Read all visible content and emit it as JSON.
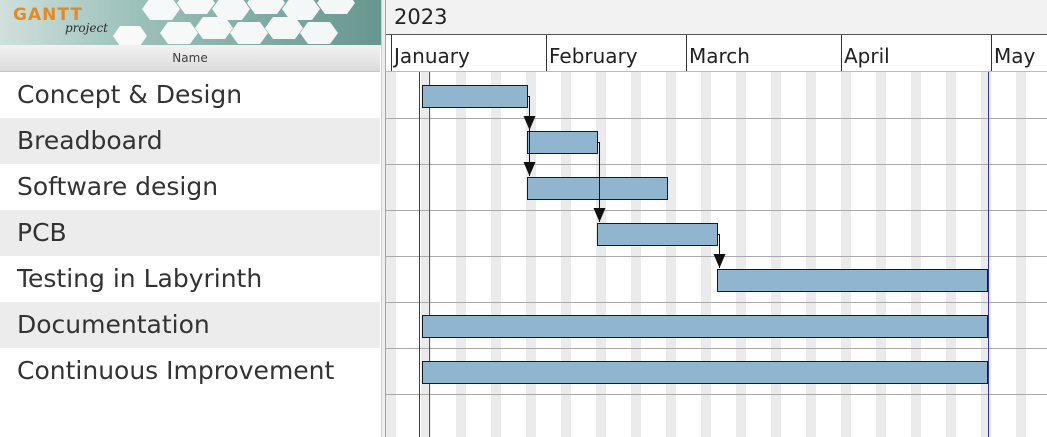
{
  "logo": {
    "brand": "GANTT",
    "sub": "project"
  },
  "task_table": {
    "column_header": "Name",
    "tasks": [
      {
        "name": "Concept & Design",
        "start": "2023-01-07",
        "end": "2023-01-28",
        "depends_on": null
      },
      {
        "name": "Breadboard",
        "start": "2023-01-28",
        "end": "2023-02-11",
        "depends_on": 0
      },
      {
        "name": "Software design",
        "start": "2023-01-28",
        "end": "2023-02-25",
        "depends_on": 0
      },
      {
        "name": "PCB",
        "start": "2023-02-11",
        "end": "2023-03-07",
        "depends_on": 1
      },
      {
        "name": "Testing in Labyrinth",
        "start": "2023-03-07",
        "end": "2023-04-30",
        "depends_on": 3
      },
      {
        "name": "Documentation",
        "start": "2023-01-07",
        "end": "2023-04-30",
        "depends_on": null
      },
      {
        "name": "Continuous Improvement",
        "start": "2023-01-07",
        "end": "2023-04-30",
        "depends_on": null
      }
    ]
  },
  "timeline": {
    "year": "2023",
    "months": [
      {
        "label": "January",
        "start": "2023-01-01"
      },
      {
        "label": "February",
        "start": "2023-02-01"
      },
      {
        "label": "March",
        "start": "2023-03-01"
      },
      {
        "label": "April",
        "start": "2023-04-01"
      },
      {
        "label": "May",
        "start": "2023-05-01"
      }
    ],
    "today": "2023-01-09"
  },
  "colors": {
    "bar_fill": "#8fb5cf",
    "bar_border": "#1a1a1a",
    "weekend": "#ebebeb",
    "today_line": "#cc2222",
    "project_bound": "#333399",
    "row_line": "#aaaaaa"
  }
}
